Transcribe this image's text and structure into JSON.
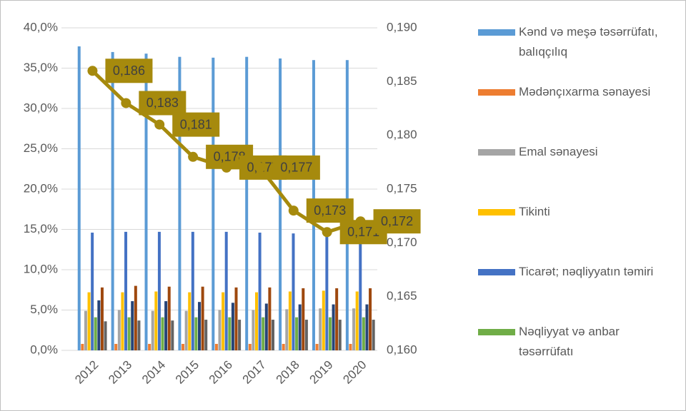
{
  "chart_data": {
    "type": "bar",
    "categories": [
      "2012",
      "2013",
      "2014",
      "2015",
      "2016",
      "2017",
      "2018",
      "2019",
      "2020"
    ],
    "ylim": [
      0,
      40
    ],
    "yticks": [
      {
        "value": 0,
        "label": "0,0%"
      },
      {
        "value": 5,
        "label": "5,0%"
      },
      {
        "value": 10,
        "label": "10,0%"
      },
      {
        "value": 15,
        "label": "15,0%"
      },
      {
        "value": 20,
        "label": "20,0%"
      },
      {
        "value": 25,
        "label": "25,0%"
      },
      {
        "value": 30,
        "label": "30,0%"
      },
      {
        "value": 35,
        "label": "35,0%"
      },
      {
        "value": 40,
        "label": "40,0%"
      }
    ],
    "y2lim": [
      0.16,
      0.19
    ],
    "y2ticks": [
      {
        "value": 0.16,
        "label": "0,160"
      },
      {
        "value": 0.165,
        "label": "0,165"
      },
      {
        "value": 0.17,
        "label": "0,170"
      },
      {
        "value": 0.175,
        "label": "0,175"
      },
      {
        "value": 0.18,
        "label": "0,180"
      },
      {
        "value": 0.185,
        "label": "0,185"
      },
      {
        "value": 0.19,
        "label": "0,190"
      }
    ],
    "grid": true,
    "legend": "right",
    "series": [
      {
        "name": "Kənd və meşə təsərrüfatı, balıqçılıq",
        "color": "#5b9bd5",
        "values": [
          37.7,
          37.0,
          36.8,
          36.4,
          36.3,
          36.4,
          36.2,
          36.0,
          36.0
        ]
      },
      {
        "name": "Mədənçıxarma sənayesi",
        "color": "#ed7d31",
        "values": [
          0.8,
          0.8,
          0.8,
          0.8,
          0.8,
          0.8,
          0.8,
          0.8,
          0.8
        ]
      },
      {
        "name": "Emal sənayesi",
        "color": "#a5a5a5",
        "values": [
          4.9,
          5.0,
          4.9,
          4.9,
          5.0,
          5.0,
          5.1,
          5.2,
          5.2
        ]
      },
      {
        "name": "Tikinti",
        "color": "#ffc000",
        "values": [
          7.2,
          7.2,
          7.3,
          7.2,
          7.2,
          7.2,
          7.3,
          7.4,
          7.3
        ]
      },
      {
        "name": "Ticarət; nəqliyyatın təmiri",
        "color": "#4472c4",
        "values": [
          14.6,
          14.7,
          14.7,
          14.7,
          14.7,
          14.6,
          14.5,
          14.5,
          14.4
        ]
      },
      {
        "name": "Nəqliyyat və anbar təsərrüfatı",
        "color": "#70ad47",
        "values": [
          4.1,
          4.1,
          4.1,
          4.1,
          4.1,
          4.1,
          4.1,
          4.1,
          4.1
        ]
      },
      {
        "color": "#264478",
        "values": [
          6.2,
          6.1,
          6.1,
          6.0,
          5.9,
          5.8,
          5.7,
          5.7,
          5.7
        ]
      },
      {
        "color": "#9e480e",
        "values": [
          7.8,
          8.0,
          7.9,
          7.9,
          7.8,
          7.8,
          7.7,
          7.7,
          7.7
        ]
      },
      {
        "color": "#636363",
        "values": [
          3.6,
          3.7,
          3.7,
          3.8,
          3.8,
          3.8,
          3.8,
          3.8,
          3.8
        ]
      },
      {
        "type": "line",
        "axis": "y2",
        "color": "#a68a0d",
        "values": [
          0.186,
          0.183,
          0.181,
          0.178,
          0.177,
          0.177,
          0.173,
          0.171,
          0.172
        ],
        "value_labels": [
          "0,186",
          "0,183",
          "0,181",
          "0,178",
          "0,177",
          "0,177",
          "0,173",
          "0,171",
          "0,172"
        ]
      }
    ]
  }
}
